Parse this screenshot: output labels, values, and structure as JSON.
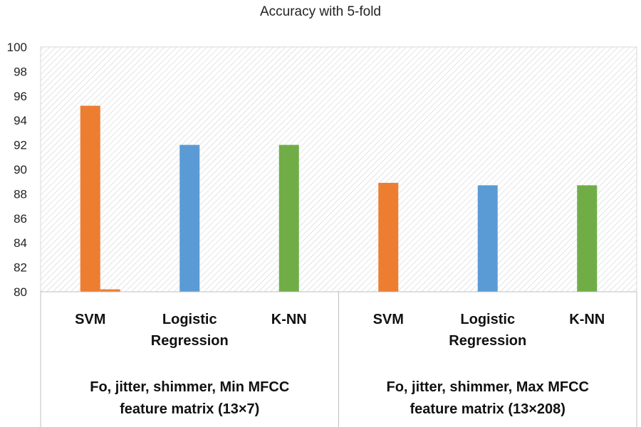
{
  "chart_data": {
    "type": "bar",
    "title": "Accuracy with 5-fold",
    "xlabel": "",
    "ylabel": "",
    "ylim": [
      80,
      100
    ],
    "yticks": [
      80,
      82,
      84,
      86,
      88,
      90,
      92,
      94,
      96,
      98,
      100
    ],
    "grid": true,
    "legend": "none",
    "groups": [
      {
        "label_lines": [
          "Fo, jitter, shimmer, Min MFCC",
          "feature matrix (13×7)"
        ],
        "bars": [
          {
            "label_lines": [
              "SVM"
            ],
            "value": 95.2,
            "color": "#ed7d31"
          },
          {
            "label_lines": [
              "Logistic",
              "Regression"
            ],
            "value": 92.0,
            "color": "#5b9bd5"
          },
          {
            "label_lines": [
              "K-NN"
            ],
            "value": 92.0,
            "color": "#70ad47"
          }
        ]
      },
      {
        "label_lines": [
          "Fo, jitter, shimmer, Max MFCC",
          "feature matrix (13×208)"
        ],
        "bars": [
          {
            "label_lines": [
              "SVM"
            ],
            "value": 88.9,
            "color": "#ed7d31"
          },
          {
            "label_lines": [
              "Logistic",
              "Regression"
            ],
            "value": 88.7,
            "color": "#5b9bd5"
          },
          {
            "label_lines": [
              "K-NN"
            ],
            "value": 88.7,
            "color": "#70ad47"
          }
        ]
      }
    ],
    "extra_bars": [
      {
        "group": 0,
        "after_bar": 0,
        "value": 80.2,
        "color": "#ed7d31"
      }
    ]
  }
}
